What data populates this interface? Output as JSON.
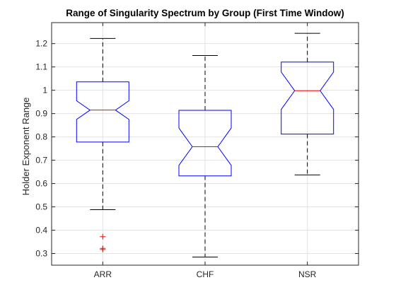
{
  "chart_data": {
    "type": "box",
    "notched": true,
    "title": "Range of Singularity Spectrum by Group (First Time Window)",
    "xlabel": "",
    "ylabel": "Holder Exponent Range",
    "ylim": [
      0.25,
      1.29
    ],
    "yticks": [
      0.3,
      0.4,
      0.5,
      0.6,
      0.7,
      0.8,
      0.9,
      1,
      1.1,
      1.2
    ],
    "ytick_labels": [
      "0.3",
      "0.4",
      "0.5",
      "0.6",
      "0.7",
      "0.8",
      "0.9",
      "1",
      "1.1",
      "1.2"
    ],
    "grid": true,
    "categories": [
      "ARR",
      "CHF",
      "NSR"
    ],
    "boxes": [
      {
        "name": "ARR",
        "whisker_low": 0.488,
        "q1": 0.778,
        "notch_low": 0.875,
        "median": 0.915,
        "notch_high": 0.955,
        "q3": 1.036,
        "whisker_high": 1.222,
        "outliers": [
          0.372,
          0.322,
          0.317
        ]
      },
      {
        "name": "CHF",
        "whisker_low": 0.285,
        "q1": 0.633,
        "notch_low": 0.678,
        "median": 0.758,
        "notch_high": 0.838,
        "q3": 0.914,
        "whisker_high": 1.149,
        "outliers": []
      },
      {
        "name": "NSR",
        "whisker_low": 0.637,
        "q1": 0.812,
        "notch_low": 0.918,
        "median": 0.998,
        "notch_high": 1.078,
        "q3": 1.121,
        "whisker_high": 1.244,
        "outliers": []
      }
    ],
    "colors": {
      "box": "#0000ff",
      "median": "#ff0000",
      "whisker": "#000000",
      "outlier": "#ff0000",
      "grid": "#e3e3e3",
      "axis": "#262626"
    }
  }
}
